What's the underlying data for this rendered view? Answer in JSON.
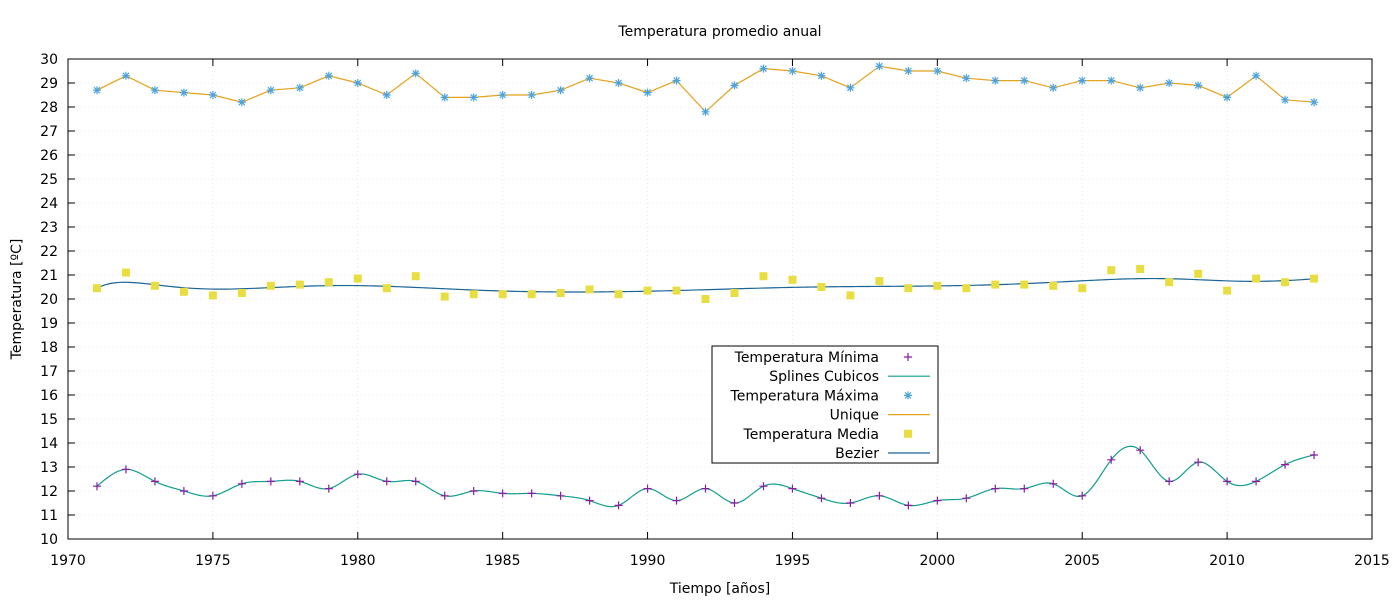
{
  "chart_data": {
    "type": "line",
    "title": "Temperatura promedio anual",
    "xlabel": "Tiempo [años]",
    "ylabel": "Temperatura [ºC]",
    "xlim": [
      1970,
      2015
    ],
    "ylim": [
      10,
      30
    ],
    "xticks": [
      1970,
      1975,
      1980,
      1985,
      1990,
      1995,
      2000,
      2005,
      2010,
      2015
    ],
    "yticks": [
      10,
      11,
      12,
      13,
      14,
      15,
      16,
      17,
      18,
      19,
      20,
      21,
      22,
      23,
      24,
      25,
      26,
      27,
      28,
      29,
      30
    ],
    "grid": true,
    "legend_position": "center-bottom",
    "x": [
      1971,
      1972,
      1973,
      1974,
      1975,
      1976,
      1977,
      1978,
      1979,
      1980,
      1981,
      1982,
      1983,
      1984,
      1985,
      1986,
      1987,
      1988,
      1989,
      1990,
      1991,
      1992,
      1993,
      1994,
      1995,
      1996,
      1997,
      1998,
      1999,
      2000,
      2001,
      2002,
      2003,
      2004,
      2005,
      2006,
      2007,
      2008,
      2009,
      2010,
      2011,
      2012,
      2013
    ],
    "series": [
      {
        "name": "Temperatura Mínima",
        "style": "points-plus",
        "color": "#8b1aa6",
        "values": [
          12.2,
          12.9,
          12.4,
          12.0,
          11.8,
          12.3,
          12.4,
          12.4,
          12.1,
          12.7,
          12.4,
          12.4,
          11.8,
          12.0,
          11.9,
          11.9,
          11.8,
          11.6,
          11.4,
          12.1,
          11.6,
          12.1,
          11.5,
          12.2,
          12.1,
          11.7,
          11.5,
          11.8,
          11.4,
          11.6,
          11.7,
          12.1,
          12.1,
          12.3,
          11.8,
          13.3,
          13.7,
          12.4,
          13.2,
          12.4,
          12.4,
          13.1,
          13.5
        ]
      },
      {
        "name": "Splines Cubicos",
        "style": "spline",
        "color": "#119e8c",
        "of_series": "Temperatura Mínima"
      },
      {
        "name": "Temperatura Máxima",
        "style": "points-star",
        "color": "#4aa3df",
        "values": [
          28.7,
          29.3,
          28.7,
          28.6,
          28.5,
          28.2,
          28.7,
          28.8,
          29.3,
          29.0,
          28.5,
          29.4,
          28.4,
          28.4,
          28.5,
          28.5,
          28.7,
          29.2,
          29.0,
          28.6,
          29.1,
          27.8,
          28.9,
          29.6,
          29.5,
          29.3,
          28.8,
          29.7,
          29.5,
          29.5,
          29.2,
          29.1,
          29.1,
          28.8,
          29.1,
          29.1,
          28.8,
          29.0,
          28.9,
          28.4,
          29.3,
          28.3,
          28.2
        ]
      },
      {
        "name": "Unique",
        "style": "line",
        "color": "#e5a21b",
        "of_series": "Temperatura Máxima"
      },
      {
        "name": "Temperatura Media",
        "style": "points-square",
        "color": "#e8de42",
        "values": [
          20.45,
          21.1,
          20.55,
          20.3,
          20.15,
          20.25,
          20.55,
          20.6,
          20.7,
          20.85,
          20.45,
          20.95,
          20.1,
          20.2,
          20.2,
          20.2,
          20.25,
          20.4,
          20.2,
          20.35,
          20.35,
          20.0,
          20.25,
          20.95,
          20.8,
          20.5,
          20.15,
          20.75,
          20.45,
          20.55,
          20.45,
          20.6,
          20.6,
          20.55,
          20.45,
          21.2,
          21.25,
          20.7,
          21.05,
          20.35,
          20.85,
          20.7,
          20.85
        ]
      },
      {
        "name": "Bezier",
        "style": "bezier",
        "color": "#1a6496",
        "of_series": "Temperatura Media"
      }
    ]
  }
}
